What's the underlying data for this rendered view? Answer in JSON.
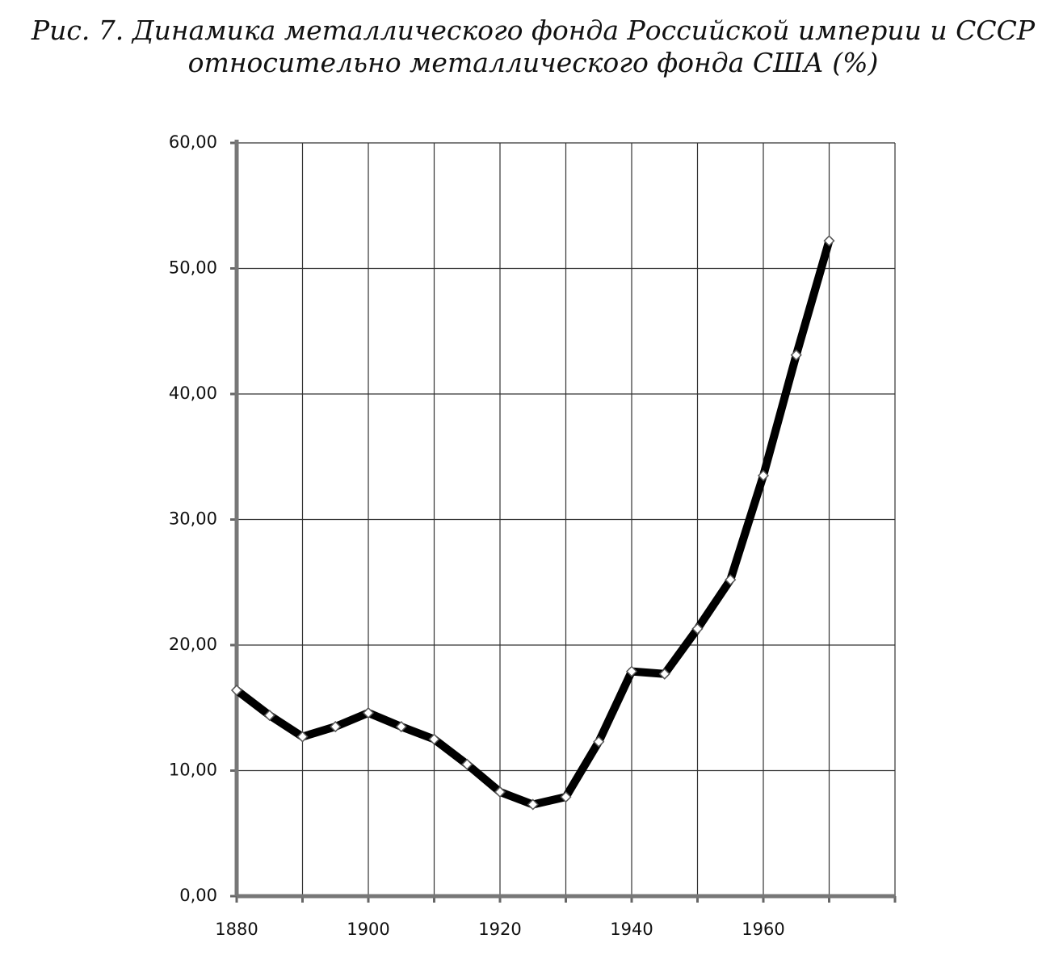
{
  "chart_data": {
    "type": "line",
    "title": [
      "Рис. 7. Динамика металлического фонда Российской империи и СССР",
      "относительно металлического фонда США (%)"
    ],
    "x": [
      1880,
      1885,
      1890,
      1895,
      1900,
      1905,
      1910,
      1915,
      1920,
      1925,
      1930,
      1935,
      1940,
      1945,
      1950,
      1955,
      1960,
      1965,
      1970
    ],
    "series": [
      {
        "name": null,
        "color": "#000000",
        "values": [
          16.4,
          14.4,
          12.7,
          13.5,
          14.6,
          13.5,
          12.5,
          10.5,
          8.3,
          7.3,
          7.9,
          12.3,
          17.9,
          17.7,
          21.3,
          25.2,
          33.5,
          43.1,
          52.2
        ]
      }
    ],
    "xlim": [
      1880,
      1980
    ],
    "xticks": [
      1880,
      {
        "value": 1890,
        "label": null
      },
      1900,
      {
        "value": 1910,
        "label": null
      },
      1920,
      {
        "value": 1930,
        "label": null
      },
      1940,
      {
        "value": 1950,
        "label": null
      },
      1960,
      {
        "value": 1970,
        "label": null
      },
      {
        "value": 1980,
        "label": null
      }
    ],
    "ylim": [
      0,
      60
    ],
    "yticks": [
      {
        "value": 0,
        "label": "0,00"
      },
      {
        "value": 10,
        "label": "10,00"
      },
      {
        "value": 20,
        "label": "20,00"
      },
      {
        "value": 30,
        "label": "30,00"
      },
      {
        "value": 40,
        "label": "40,00"
      },
      {
        "value": 50,
        "label": "50,00"
      },
      {
        "value": 60,
        "label": "60,00"
      }
    ],
    "grid": true
  }
}
